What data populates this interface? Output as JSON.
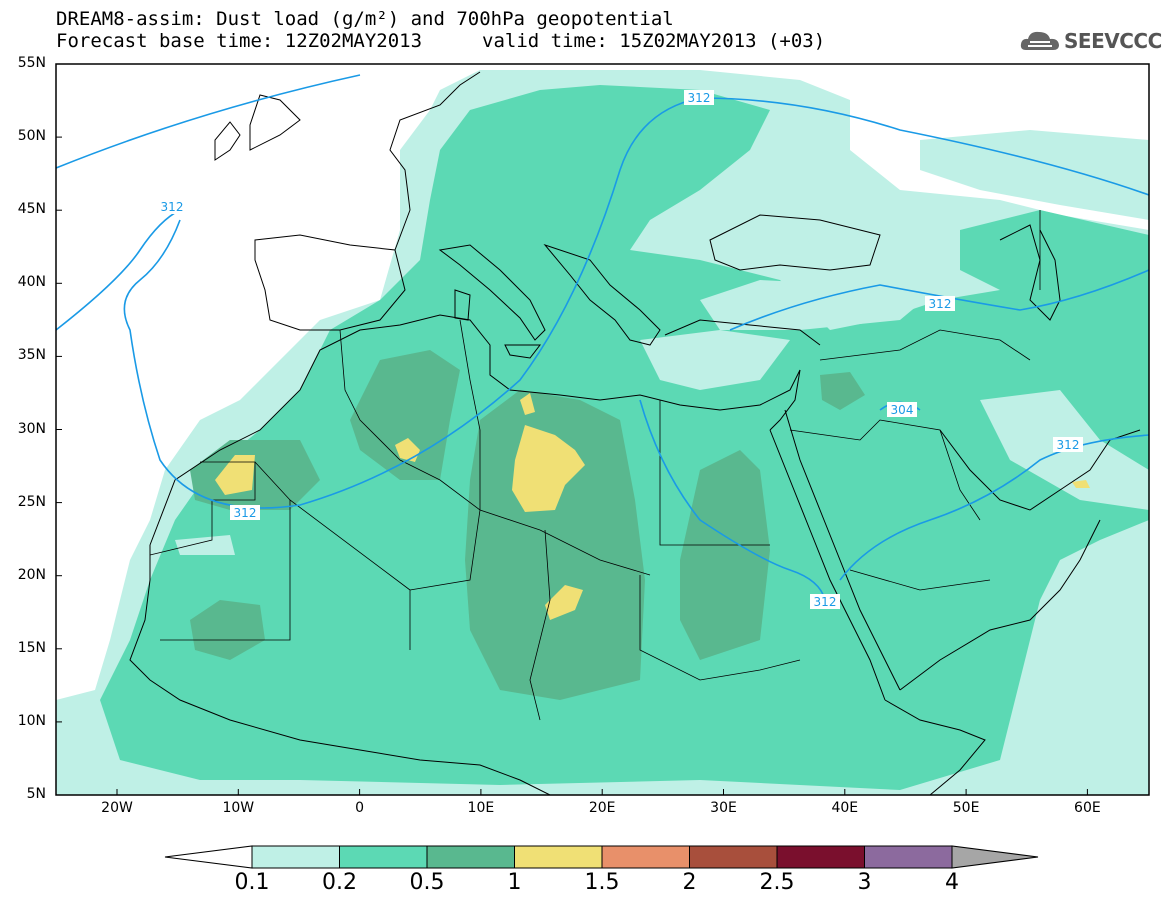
{
  "title_line1": "DREAM8-assim: Dust load (g/m²) and 700hPa geopotential",
  "title_line2_left": "Forecast base time: 12Z02MAY2013",
  "title_line2_right": "valid time: 15Z02MAY2013 (+03)",
  "logo_text": "SEEVCCC",
  "lat_labels": [
    "55N",
    "50N",
    "45N",
    "40N",
    "35N",
    "30N",
    "25N",
    "20N",
    "15N",
    "10N",
    "5N"
  ],
  "lon_labels": [
    "20W",
    "10W",
    "0",
    "10E",
    "20E",
    "30E",
    "40E",
    "50E",
    "60E"
  ],
  "contour_labels": [
    "312",
    "312",
    "312",
    "312",
    "312",
    "304",
    "312"
  ],
  "colorbar": {
    "levels": [
      "0.1",
      "0.2",
      "0.5",
      "1",
      "1.5",
      "2",
      "2.5",
      "3",
      "4"
    ],
    "colors": [
      "#bff0e6",
      "#5cd9b4",
      "#59b88f",
      "#f0e075",
      "#e8906a",
      "#a84f3c",
      "#7a0f2d",
      "#8c6a9e"
    ]
  },
  "colors": {
    "land_none": "#ffffff",
    "contour_line": "#1a9ae6",
    "coast": "#000000"
  }
}
